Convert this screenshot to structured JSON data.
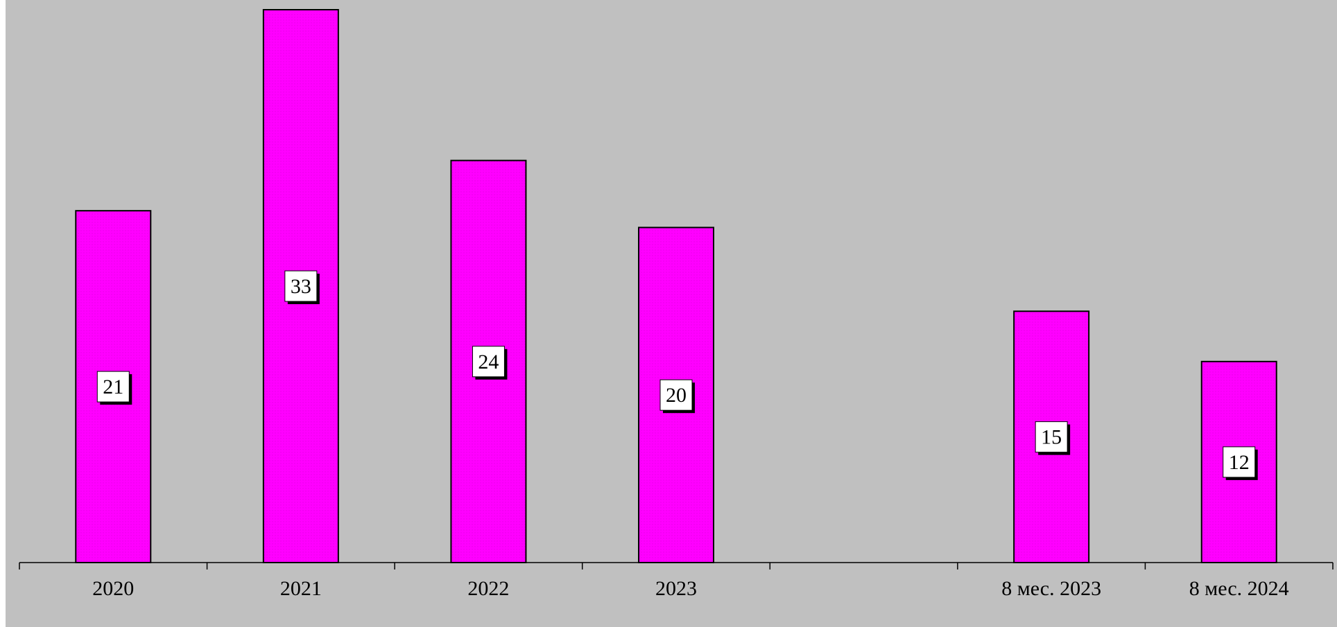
{
  "chart_data": {
    "type": "bar",
    "categories": [
      "2020",
      "2021",
      "2022",
      "2023",
      "",
      "8 мес. 2023",
      "8 мес. 2024"
    ],
    "values": [
      21,
      33,
      24,
      20,
      null,
      15,
      12
    ],
    "data_labels": [
      "21",
      "33",
      "24",
      "20",
      "",
      "15",
      "12"
    ],
    "title": "",
    "xlabel": "",
    "ylabel": "",
    "ylim": [
      0,
      33
    ],
    "grid": false,
    "legend": "none",
    "colors": {
      "bar": "#ff00ff",
      "bar_pattern": "#e600e6",
      "plot_background": "#c0c0c0",
      "label_box": "#ffffff"
    }
  }
}
